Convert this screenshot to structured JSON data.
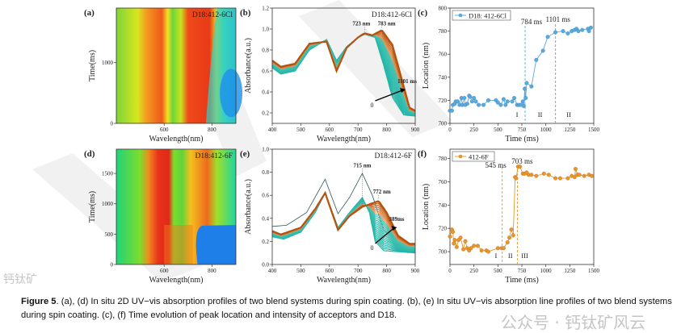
{
  "figure": {
    "caption_label": "Figure 5",
    "caption_text": ". (a), (d) In situ 2D UV−vis absorption profiles of two blend systems during spin coating. (b), (e) In situ UV−vis absorption line profiles of two blend systems during spin coating. (c), (f) Time evolution of peak location and intensity of acceptors and D18.",
    "watermark_1": "公众号 · 钙钛矿风云",
    "watermark_2": "钙钛矿"
  },
  "chart_data": [
    {
      "id": "a",
      "panel_label": "(a)",
      "type": "heatmap",
      "title": "D18:412-6Cl",
      "xlabel": "Wavelength(nm)",
      "ylabel": "Time(ms)",
      "xlim": [
        400,
        900
      ],
      "ylim": [
        0,
        1900
      ],
      "xticks": [
        "600",
        "800"
      ],
      "yticks": [
        "0",
        "1000"
      ]
    },
    {
      "id": "d",
      "panel_label": "(d)",
      "type": "heatmap",
      "title": "D18:412-6F",
      "xlabel": "Wavelength(nm)",
      "ylabel": "Time(ms)",
      "xlim": [
        400,
        900
      ],
      "ylim": [
        0,
        1900
      ],
      "xticks": [
        "600",
        "800"
      ],
      "yticks": [
        "0",
        "500",
        "1000",
        "1500"
      ]
    },
    {
      "id": "b",
      "panel_label": "(b)",
      "type": "line",
      "title": "D18:412-6Cl",
      "xlabel": "Wavelength(nm)",
      "ylabel": "Absorbance(a.u.)",
      "xlim": [
        400,
        900
      ],
      "ylim": [
        0.1,
        1.2
      ],
      "xticks": [
        "400",
        "500",
        "600",
        "700",
        "800",
        "900"
      ],
      "yticks": [
        "0.2",
        "0.4",
        "0.6",
        "0.8",
        "1.0",
        "1.2"
      ],
      "annotations": {
        "peak1": "723 nm",
        "peak2": "783 nm",
        "start": "0",
        "end": "1101 ms"
      },
      "initial": [
        [
          400,
          0.63
        ],
        [
          430,
          0.57
        ],
        [
          480,
          0.6
        ],
        [
          530,
          0.8
        ],
        [
          560,
          0.85
        ],
        [
          590,
          0.9
        ],
        [
          625,
          0.7
        ],
        [
          660,
          0.83
        ],
        [
          700,
          0.92
        ],
        [
          723,
          0.95
        ],
        [
          760,
          0.92
        ],
        [
          790,
          0.65
        ],
        [
          820,
          0.35
        ],
        [
          860,
          0.18
        ],
        [
          900,
          0.17
        ]
      ],
      "final": [
        [
          400,
          0.7
        ],
        [
          430,
          0.64
        ],
        [
          480,
          0.67
        ],
        [
          530,
          0.86
        ],
        [
          560,
          0.87
        ],
        [
          590,
          0.88
        ],
        [
          625,
          0.6
        ],
        [
          660,
          0.82
        ],
        [
          700,
          0.92
        ],
        [
          723,
          0.96
        ],
        [
          750,
          0.94
        ],
        [
          783,
          0.99
        ],
        [
          820,
          0.85
        ],
        [
          850,
          0.55
        ],
        [
          880,
          0.25
        ],
        [
          900,
          0.22
        ]
      ]
    },
    {
      "id": "e",
      "panel_label": "(e)",
      "type": "line",
      "title": "D18:412-6F",
      "xlabel": "Wavelength(nm)",
      "ylabel": "Absorbance(a.u.)",
      "xlim": [
        400,
        900
      ],
      "ylim": [
        0,
        1.0
      ],
      "xticks": [
        "400",
        "500",
        "600",
        "700",
        "800",
        "900"
      ],
      "yticks": [
        "0.0",
        "0.2",
        "0.4",
        "0.6",
        "0.8",
        "1.0"
      ],
      "annotations": {
        "peak1": "715 nm",
        "peak2": "772 nm",
        "start": "0",
        "end": "389ms"
      },
      "first": [
        [
          400,
          0.33
        ],
        [
          450,
          0.34
        ],
        [
          520,
          0.45
        ],
        [
          585,
          0.74
        ],
        [
          630,
          0.44
        ],
        [
          670,
          0.58
        ],
        [
          715,
          0.79
        ],
        [
          750,
          0.6
        ],
        [
          790,
          0.3
        ],
        [
          850,
          0.18
        ],
        [
          900,
          0.17
        ]
      ],
      "initial": [
        [
          400,
          0.24
        ],
        [
          440,
          0.22
        ],
        [
          500,
          0.28
        ],
        [
          550,
          0.45
        ],
        [
          585,
          0.62
        ],
        [
          630,
          0.32
        ],
        [
          670,
          0.45
        ],
        [
          715,
          0.58
        ],
        [
          740,
          0.45
        ],
        [
          760,
          0.2
        ],
        [
          790,
          0.12
        ],
        [
          900,
          0.1
        ]
      ],
      "final": [
        [
          400,
          0.29
        ],
        [
          430,
          0.26
        ],
        [
          500,
          0.32
        ],
        [
          550,
          0.48
        ],
        [
          585,
          0.62
        ],
        [
          630,
          0.3
        ],
        [
          670,
          0.42
        ],
        [
          715,
          0.5
        ],
        [
          772,
          0.55
        ],
        [
          800,
          0.45
        ],
        [
          840,
          0.25
        ],
        [
          880,
          0.18
        ],
        [
          900,
          0.18
        ]
      ]
    },
    {
      "id": "c",
      "panel_label": "(c)",
      "type": "line",
      "legend": "D18: 412-6Cl",
      "legend_position": "top-left",
      "xlabel": "Time (ms)",
      "ylabel": "Location (nm)",
      "xlim": [
        0,
        1500
      ],
      "ylim": [
        700,
        800
      ],
      "xticks": [
        "0",
        "250",
        "500",
        "750",
        "1000",
        "1250",
        "1500"
      ],
      "yticks": [
        "700",
        "720",
        "740",
        "760",
        "780",
        "800"
      ],
      "color": "#5aa9dc",
      "vlines": [
        {
          "x": 784,
          "label": "784 ms"
        },
        {
          "x": 1101,
          "label": "1101 ms"
        }
      ],
      "regions": [
        "I",
        "II",
        "II"
      ],
      "points": [
        [
          0,
          711
        ],
        [
          20,
          711
        ],
        [
          30,
          716
        ],
        [
          50,
          717
        ],
        [
          60,
          719
        ],
        [
          80,
          719
        ],
        [
          100,
          716
        ],
        [
          120,
          722
        ],
        [
          130,
          716
        ],
        [
          150,
          722
        ],
        [
          160,
          716
        ],
        [
          180,
          717
        ],
        [
          200,
          724
        ],
        [
          210,
          723
        ],
        [
          230,
          719
        ],
        [
          250,
          722
        ],
        [
          270,
          719
        ],
        [
          300,
          716
        ],
        [
          350,
          716
        ],
        [
          400,
          720
        ],
        [
          480,
          720
        ],
        [
          500,
          718
        ],
        [
          530,
          716
        ],
        [
          560,
          721
        ],
        [
          580,
          716
        ],
        [
          600,
          719
        ],
        [
          650,
          719
        ],
        [
          670,
          722
        ],
        [
          700,
          716
        ],
        [
          720,
          716
        ],
        [
          740,
          716
        ],
        [
          760,
          719
        ],
        [
          770,
          715
        ],
        [
          780,
          730
        ],
        [
          790,
          722
        ],
        [
          800,
          735
        ],
        [
          850,
          732
        ],
        [
          900,
          755
        ],
        [
          970,
          763
        ],
        [
          1020,
          775
        ],
        [
          1100,
          779
        ],
        [
          1180,
          780
        ],
        [
          1230,
          778
        ],
        [
          1270,
          780
        ],
        [
          1300,
          781
        ],
        [
          1320,
          782
        ],
        [
          1340,
          780
        ],
        [
          1380,
          781
        ],
        [
          1440,
          782
        ],
        [
          1450,
          780
        ],
        [
          1470,
          783
        ]
      ]
    },
    {
      "id": "f",
      "panel_label": "(f)",
      "type": "line",
      "legend": "412-6F",
      "legend_position": "top-left",
      "xlabel": "Time (ms)",
      "ylabel": "Location (nm)",
      "xlim": [
        0,
        1500
      ],
      "ylim": [
        689,
        788
      ],
      "xticks": [
        "0",
        "250",
        "500",
        "750",
        "1000",
        "1250",
        "1500"
      ],
      "yticks": [
        "700",
        "720",
        "740",
        "760",
        "780"
      ],
      "color": "#e8952e",
      "vlines": [
        {
          "x": 545,
          "label": "545 ms"
        },
        {
          "x": 703,
          "label": "703 ms"
        }
      ],
      "regions": [
        "I",
        "II",
        "III"
      ],
      "points": [
        [
          0,
          713
        ],
        [
          20,
          719
        ],
        [
          30,
          717
        ],
        [
          40,
          707
        ],
        [
          50,
          710
        ],
        [
          70,
          704
        ],
        [
          90,
          710
        ],
        [
          110,
          712
        ],
        [
          140,
          702
        ],
        [
          160,
          709
        ],
        [
          180,
          703
        ],
        [
          200,
          701
        ],
        [
          220,
          703
        ],
        [
          250,
          705
        ],
        [
          290,
          705
        ],
        [
          330,
          701
        ],
        [
          380,
          701
        ],
        [
          400,
          700
        ],
        [
          500,
          703
        ],
        [
          540,
          703
        ],
        [
          560,
          703
        ],
        [
          600,
          708
        ],
        [
          620,
          712
        ],
        [
          640,
          719
        ],
        [
          660,
          714
        ],
        [
          680,
          764
        ],
        [
          690,
          763
        ],
        [
          710,
          773
        ],
        [
          730,
          773
        ],
        [
          760,
          767
        ],
        [
          780,
          767
        ],
        [
          800,
          768
        ],
        [
          820,
          766
        ],
        [
          850,
          766
        ],
        [
          900,
          765
        ],
        [
          980,
          767
        ],
        [
          1030,
          766
        ],
        [
          1100,
          763
        ],
        [
          1150,
          763
        ],
        [
          1230,
          763
        ],
        [
          1270,
          765
        ],
        [
          1300,
          764
        ],
        [
          1310,
          771
        ],
        [
          1330,
          766
        ],
        [
          1350,
          766
        ],
        [
          1400,
          765
        ],
        [
          1450,
          766
        ],
        [
          1480,
          765
        ]
      ]
    }
  ]
}
